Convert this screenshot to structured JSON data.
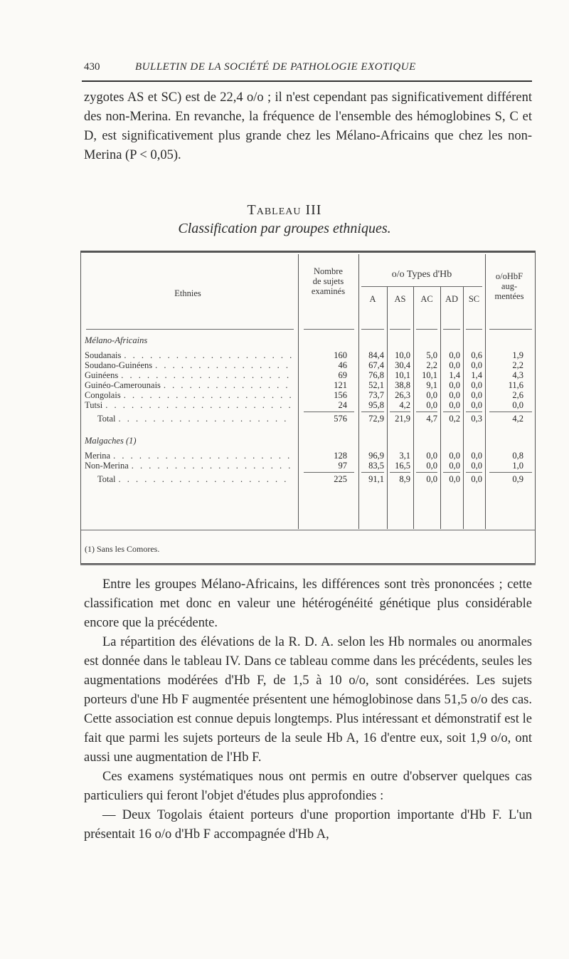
{
  "header": {
    "page_number": "430",
    "running_title": "BULLETIN DE LA SOCIÉTÉ DE PATHOLOGIE EXOTIQUE"
  },
  "paragraph_1": "zygotes AS et SC) est de 22,4 o/o ; il n'est cependant pas significativement différent des non-Merina. En revanche, la fréquence de l'ensemble des hémoglobines S, C et D, est significativement plus grande chez les Mélano-Africains que chez les non-Merina (P < 0,05).",
  "table": {
    "title": "Tableau III",
    "subtitle": "Classification par groupes ethniques.",
    "headers": {
      "ethnies": "Ethnies",
      "nombre": [
        "Nombre",
        "de sujets",
        "examinés"
      ],
      "types": "o/o Types d'Hb",
      "types_sub": [
        "A",
        "AS",
        "AC",
        "AD",
        "SC"
      ],
      "hbf": [
        "o/oHbF",
        "aug-",
        "mentées"
      ]
    },
    "groups": [
      {
        "name": "Mélano-Africains",
        "rows": [
          {
            "ethnie": "Soudanais",
            "n": "160",
            "A": "84,4",
            "AS": "10,0",
            "AC": "5,0",
            "AD": "0,0",
            "SC": "0,6",
            "HbF": "1,9"
          },
          {
            "ethnie": "Soudano-Guinéens",
            "n": "46",
            "A": "67,4",
            "AS": "30,4",
            "AC": "2,2",
            "AD": "0,0",
            "SC": "0,0",
            "HbF": "2,2"
          },
          {
            "ethnie": "Guinéens",
            "n": "69",
            "A": "76,8",
            "AS": "10,1",
            "AC": "10,1",
            "AD": "1,4",
            "SC": "1,4",
            "HbF": "4,3"
          },
          {
            "ethnie": "Guinéo-Camerounais",
            "n": "121",
            "A": "52,1",
            "AS": "38,8",
            "AC": "9,1",
            "AD": "0,0",
            "SC": "0,0",
            "HbF": "11,6"
          },
          {
            "ethnie": "Congolais",
            "n": "156",
            "A": "73,7",
            "AS": "26,3",
            "AC": "0,0",
            "AD": "0,0",
            "SC": "0,0",
            "HbF": "2,6"
          },
          {
            "ethnie": "Tutsi",
            "n": "24",
            "A": "95,8",
            "AS": "4,2",
            "AC": "0,0",
            "AD": "0,0",
            "SC": "0,0",
            "HbF": "0,0"
          }
        ],
        "total": {
          "ethnie": "Total",
          "n": "576",
          "A": "72,9",
          "AS": "21,9",
          "AC": "4,7",
          "AD": "0,2",
          "SC": "0,3",
          "HbF": "4,2"
        }
      },
      {
        "name": "Malgaches (1)",
        "rows": [
          {
            "ethnie": "Merina",
            "n": "128",
            "A": "96,9",
            "AS": "3,1",
            "AC": "0,0",
            "AD": "0,0",
            "SC": "0,0",
            "HbF": "0,8"
          },
          {
            "ethnie": "Non-Merina",
            "n": "97",
            "A": "83,5",
            "AS": "16,5",
            "AC": "0,0",
            "AD": "0,0",
            "SC": "0,0",
            "HbF": "1,0"
          }
        ],
        "total": {
          "ethnie": "Total",
          "n": "225",
          "A": "91,1",
          "AS": "8,9",
          "AC": "0,0",
          "AD": "0,0",
          "SC": "0,0",
          "HbF": "0,9"
        }
      }
    ],
    "footnote": "(1) Sans les Comores."
  },
  "paragraph_2": "Entre les groupes Mélano-Africains, les différences sont très prononcées ; cette classification met donc en valeur une hétérogénéité génétique plus considérable encore que la précédente.",
  "paragraph_3": "La répartition des élévations de la R. D. A. selon les Hb normales ou anormales est donnée dans le tableau IV. Dans ce tableau comme dans les précédents, seules les augmentations modérées d'Hb F, de 1,5 à 10 o/o, sont considérées. Les sujets porteurs d'une Hb F augmentée présentent une hémoglobinose dans 51,5 o/o des cas. Cette association est connue depuis longtemps. Plus intéressant et démonstratif est le fait que parmi les sujets porteurs de la seule Hb A, 16 d'entre eux, soit 1,9 o/o, ont aussi une augmentation de l'Hb F.",
  "paragraph_4": "Ces examens systématiques nous ont permis en outre d'observer quelques cas particuliers qui feront l'objet d'études plus approfondies :",
  "paragraph_5": "— Deux Togolais étaient porteurs d'une proportion importante d'Hb F. L'un présentait 16 o/o d'Hb F accompagnée d'Hb A,"
}
